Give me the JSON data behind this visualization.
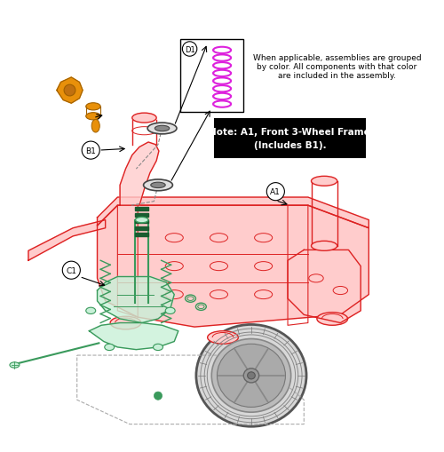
{
  "bg_color": "#ffffff",
  "frame_color": "#dd2222",
  "frame_light": "#ffcccc",
  "green_color": "#3a9a5c",
  "green_dark": "#1a5c30",
  "green_light": "#c8f0d8",
  "orange_color": "#e8900a",
  "magenta_color": "#dd22dd",
  "gray_color": "#888888",
  "gray_dark": "#444444",
  "gray_light": "#cccccc",
  "black_color": "#000000",
  "note_line1": "Note: A1, Front 3-Wheel Frame",
  "note_line2": "(Includes B1).",
  "label_text": "When applicable, assemblies are grouped\nby color. All components with that color\nare included in the assembly.",
  "fig_width": 5.0,
  "fig_height": 5.1,
  "dpi": 100
}
